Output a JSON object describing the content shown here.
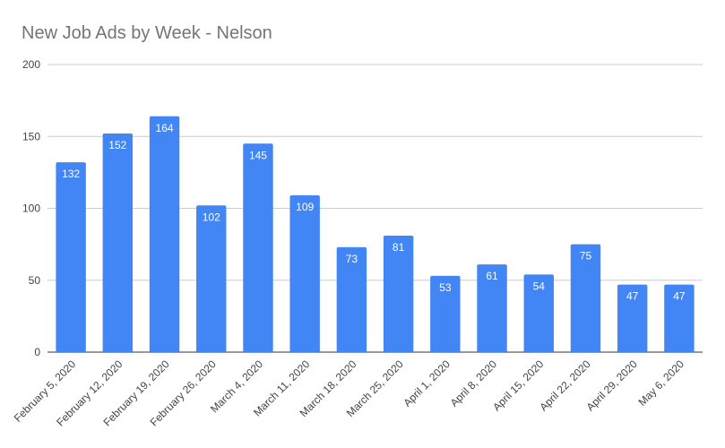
{
  "chart_data": {
    "type": "bar",
    "title": "New Job Ads by Week - Nelson",
    "xlabel": "",
    "ylabel": "",
    "categories": [
      "February 5, 2020",
      "February 12, 2020",
      "February 19, 2020",
      "February 26, 2020",
      "March 4, 2020",
      "March 11, 2020",
      "March 18, 2020",
      "March 25, 2020",
      "April 1, 2020",
      "April 8, 2020",
      "April 15, 2020",
      "April 22, 2020",
      "April 29, 2020",
      "May 6, 2020"
    ],
    "values": [
      132,
      152,
      164,
      102,
      145,
      109,
      73,
      81,
      53,
      61,
      54,
      75,
      47,
      47
    ],
    "ylim": [
      0,
      200
    ],
    "yticks": [
      0,
      50,
      100,
      150,
      200
    ],
    "grid": true,
    "legend": "none",
    "data_labels": true,
    "colors": {
      "bar": "#4285f4",
      "grid": "#cccccc",
      "axis": "#333333",
      "title": "#757575",
      "tick": "#444444",
      "data_label": "#ffffff"
    }
  }
}
